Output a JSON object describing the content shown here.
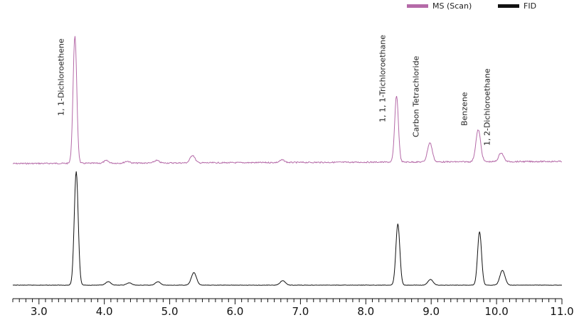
{
  "chart_data": {
    "type": "line",
    "title": "",
    "xlabel": "",
    "ylabel": "",
    "xlim": [
      2.6,
      11.0
    ],
    "xticks": [
      "3.0",
      "4.0",
      "5.0",
      "6.0",
      "7.0",
      "8.0",
      "9.0",
      "10.0",
      "11.0"
    ],
    "legend_position": "top-right",
    "grid": false,
    "series": [
      {
        "name": "MS (Scan)",
        "color": "#b56aa8",
        "peaks": [
          {
            "x": 3.55,
            "height": 1.0
          },
          {
            "x": 4.03,
            "height": 0.02
          },
          {
            "x": 4.35,
            "height": 0.015
          },
          {
            "x": 4.8,
            "height": 0.02
          },
          {
            "x": 5.35,
            "height": 0.06
          },
          {
            "x": 6.72,
            "height": 0.02
          },
          {
            "x": 8.47,
            "height": 0.52
          },
          {
            "x": 8.98,
            "height": 0.15
          },
          {
            "x": 9.72,
            "height": 0.25
          },
          {
            "x": 10.07,
            "height": 0.07
          }
        ]
      },
      {
        "name": "FID",
        "color": "#111111",
        "peaks": [
          {
            "x": 3.57,
            "height": 1.0
          },
          {
            "x": 4.06,
            "height": 0.03
          },
          {
            "x": 4.38,
            "height": 0.02
          },
          {
            "x": 4.82,
            "height": 0.03
          },
          {
            "x": 5.37,
            "height": 0.11
          },
          {
            "x": 6.73,
            "height": 0.04
          },
          {
            "x": 8.49,
            "height": 0.54
          },
          {
            "x": 8.99,
            "height": 0.05
          },
          {
            "x": 9.74,
            "height": 0.47
          },
          {
            "x": 10.09,
            "height": 0.13
          }
        ]
      }
    ],
    "annotations": [
      {
        "text": "1, 1-Dichloroethene",
        "x": 3.55
      },
      {
        "text": "1, 1, 1-Trichloroethane",
        "x": 8.47
      },
      {
        "text": "Carbon Tetrachloride",
        "x": 8.98
      },
      {
        "text": "Benzene",
        "x": 9.72
      },
      {
        "text": "1, 2-Dichloroethane",
        "x": 10.07
      }
    ]
  }
}
